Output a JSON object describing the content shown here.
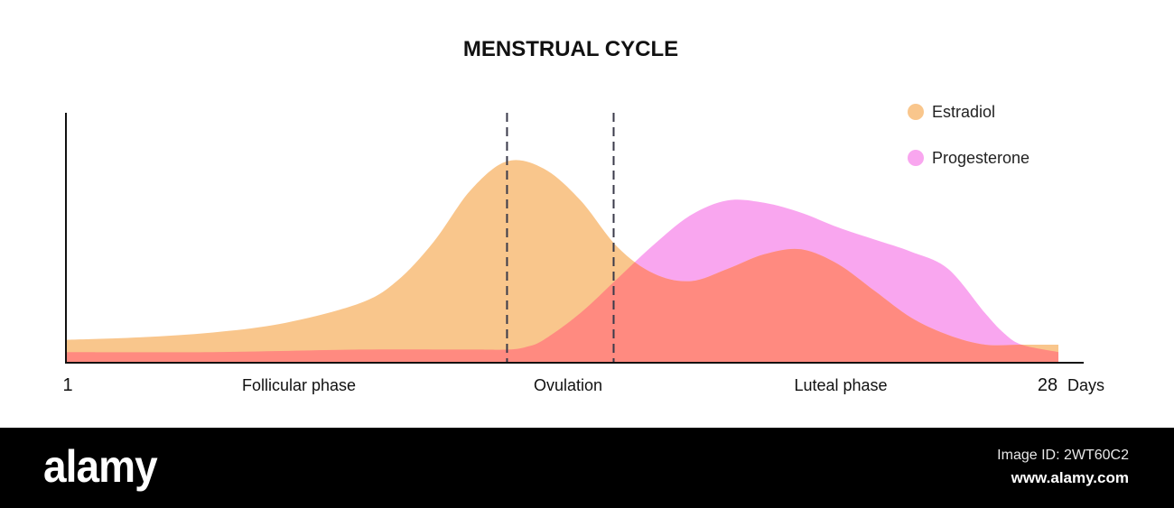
{
  "chart_data": {
    "type": "area",
    "title": "MENSTRUAL CYCLE",
    "x_start_label": "1",
    "x_end_label": "28",
    "x_unit_label": "Days",
    "xlim": [
      1,
      28
    ],
    "ylim": [
      0,
      1
    ],
    "grid": false,
    "legend_position": "top-right",
    "phases": [
      {
        "label": "Follicular phase",
        "center_day": 7.5
      },
      {
        "label": "Ovulation",
        "center_day": 14.5
      },
      {
        "label": "Luteal phase",
        "center_day": 22.4
      }
    ],
    "ovulation_window": [
      13.0,
      15.9
    ],
    "series": [
      {
        "name": "Estradiol",
        "color": "#f9c68c",
        "x": [
          1,
          3,
          5,
          7,
          9,
          10,
          11,
          12,
          13,
          14,
          15,
          16,
          17,
          18,
          19,
          20,
          21,
          22,
          23,
          24,
          25,
          26,
          27,
          28
        ],
        "values": [
          0.09,
          0.1,
          0.12,
          0.16,
          0.24,
          0.33,
          0.49,
          0.7,
          0.82,
          0.79,
          0.66,
          0.47,
          0.36,
          0.33,
          0.38,
          0.44,
          0.46,
          0.4,
          0.29,
          0.18,
          0.11,
          0.07,
          0.07,
          0.07
        ]
      },
      {
        "name": "Progesterone",
        "color": "#f9a6ef",
        "x": [
          1,
          5,
          9,
          12,
          13,
          13.5,
          14,
          15,
          16,
          17,
          18,
          19,
          20,
          21,
          22,
          23,
          24,
          25,
          26,
          26.5,
          27,
          28
        ],
        "values": [
          0.04,
          0.04,
          0.05,
          0.05,
          0.05,
          0.06,
          0.09,
          0.2,
          0.34,
          0.48,
          0.6,
          0.66,
          0.65,
          0.61,
          0.55,
          0.5,
          0.45,
          0.38,
          0.2,
          0.12,
          0.07,
          0.04
        ]
      }
    ],
    "overlap_color": "#ff8a80"
  },
  "footer": {
    "brand": "alamy",
    "image_id": "Image ID: 2WT60C2",
    "site": "www.alamy.com"
  }
}
